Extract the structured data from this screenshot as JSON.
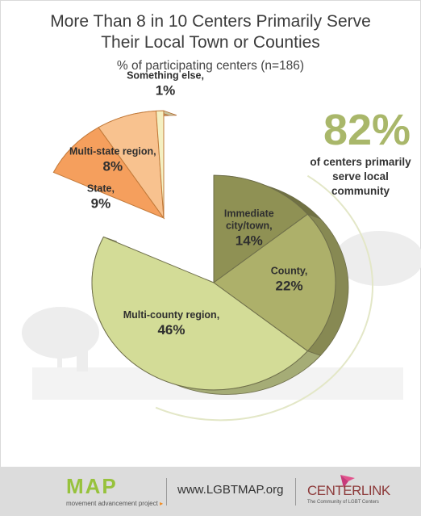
{
  "chart_data": {
    "type": "pie",
    "title_lines": [
      "More Than 8 in 10 Centers Primarily Serve",
      "Their Local Town or Counties"
    ],
    "subtitle": "% of participating centers (n=186)",
    "slices": [
      {
        "label_lines": [
          "Immediate",
          "city/town,"
        ],
        "value": 14,
        "value_text": "14%",
        "group": "local",
        "color": "#8f9154"
      },
      {
        "label_lines": [
          "County,"
        ],
        "value": 22,
        "value_text": "22%",
        "group": "local",
        "color": "#adb06a"
      },
      {
        "label_lines": [
          "Multi-county region,"
        ],
        "value": 46,
        "value_text": "46%",
        "group": "local",
        "color": "#d3dc97"
      },
      {
        "label_lines": [
          "State,"
        ],
        "value": 9,
        "value_text": "9%",
        "group": "other",
        "color": "#f59f5d"
      },
      {
        "label_lines": [
          "Multi-state region,"
        ],
        "value": 8,
        "value_text": "8%",
        "group": "other",
        "color": "#f8c28f"
      },
      {
        "label_lines": [
          "Something else,"
        ],
        "value": 1,
        "value_text": "1%",
        "group": "other",
        "color": "#f4f0c2"
      }
    ],
    "callout": {
      "value_text": "82%",
      "caption_lines": [
        "of centers primarily",
        "serve local",
        "community"
      ],
      "color": "#a9b76a"
    }
  },
  "footer": {
    "map_logo": "MAP",
    "map_tagline": "movement advancement project",
    "url": "www.LGBTMAP.org",
    "centerlink_logo": "CENTERLINK",
    "centerlink_tagline": "The Community of LGBT Centers"
  }
}
